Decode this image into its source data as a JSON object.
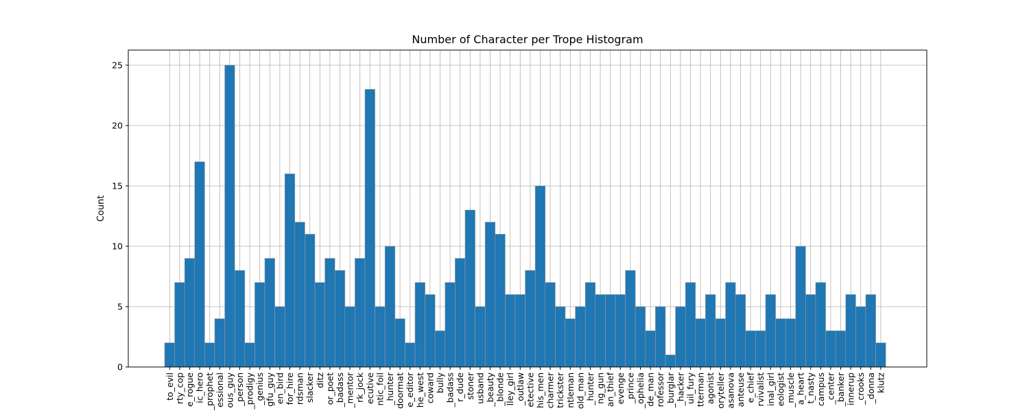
{
  "chart_data": {
    "type": "bar",
    "title": "Number of Character per Trope Histogram",
    "xlabel": "",
    "ylabel": "Count",
    "ylim": [
      0,
      26.25
    ],
    "yticks": [
      0,
      5,
      10,
      15,
      20,
      25
    ],
    "grid": true,
    "bar_color": "#1f77b4",
    "bar_edge_color": "#999999",
    "categories": [
      "to_evil",
      "rty_cop",
      "e_rogue",
      "ic_hero",
      "_prophet",
      "essional",
      "ous_guy",
      "_person",
      "_prodigy",
      "_genius",
      "gfu_guy",
      "en_bird",
      "for_hire",
      "rdsman",
      "slacker",
      "ditz",
      "or_poet",
      "_badass",
      "_mentor",
      "rk_jock",
      "ecutive",
      "ntic_foil",
      "_hunter",
      "doormat",
      "e_editor",
      "he_west",
      "coward",
      "bully",
      "_badass",
      "r_dude",
      "stoner",
      "usband",
      "_beauty",
      "_blonde",
      "lley_girl",
      "_outlaw",
      "etective",
      "his_men",
      "charmer",
      "trickster",
      "ntleman",
      "old_man",
      "_hunter",
      "ng_gun",
      "an_thief",
      "evenge",
      "_prince",
      "_ophelia",
      "de_man",
      "rofessor",
      "_burglar",
      "_hacker",
      "uil_fury",
      "tterman",
      "agonist",
      "oryteller",
      "asanova",
      "anteuse",
      "e_chief",
      "rvivalist",
      "inal_girl",
      "eologist",
      "_muscle",
      "a_heart",
      "t_nasty",
      "campus",
      "_center",
      "_banker",
      "innerup",
      "_crooks",
      "_donna",
      "klutz"
    ],
    "values": [
      2,
      7,
      9,
      17,
      2,
      4,
      25,
      8,
      2,
      7,
      9,
      5,
      16,
      12,
      11,
      7,
      9,
      8,
      5,
      9,
      23,
      5,
      10,
      4,
      2,
      7,
      6,
      3,
      7,
      9,
      13,
      5,
      12,
      11,
      6,
      6,
      8,
      15,
      7,
      5,
      4,
      5,
      7,
      6,
      6,
      6,
      8,
      5,
      3,
      5,
      1,
      5,
      7,
      4,
      6,
      4,
      7,
      6,
      3,
      3,
      6,
      4,
      4,
      10,
      6,
      7,
      3,
      3,
      6,
      5,
      6,
      2
    ]
  }
}
